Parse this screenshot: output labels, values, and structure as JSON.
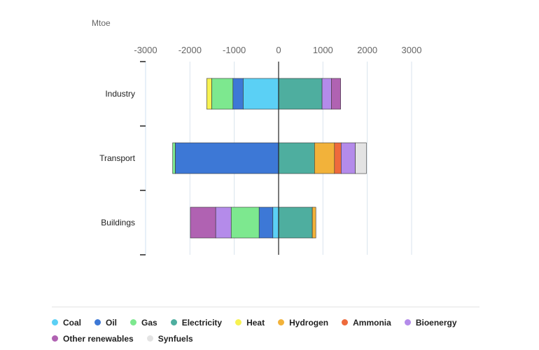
{
  "chart_data": {
    "type": "bar",
    "orientation": "horizontal",
    "stacked": true,
    "unit_label": "Mtoe",
    "xlim": [
      -3000,
      3000
    ],
    "x_ticks": [
      -3000,
      -2000,
      -1000,
      0,
      1000,
      2000,
      3000
    ],
    "x_tick_labels": [
      "-3000",
      "-2000",
      "-1000",
      "0",
      "1000",
      "2000",
      "3000"
    ],
    "categories": [
      "Industry",
      "Transport",
      "Buildings"
    ],
    "series": [
      {
        "name": "Coal",
        "color": "#5bd0f5"
      },
      {
        "name": "Oil",
        "color": "#3d78d6"
      },
      {
        "name": "Gas",
        "color": "#7de88f"
      },
      {
        "name": "Electricity",
        "color": "#4eae9f"
      },
      {
        "name": "Heat",
        "color": "#f7f251"
      },
      {
        "name": "Hydrogen",
        "color": "#f2b23a"
      },
      {
        "name": "Ammonia",
        "color": "#ee6a3c"
      },
      {
        "name": "Bioenergy",
        "color": "#b48bea"
      },
      {
        "name": "Other renewables",
        "color": "#b062b2"
      },
      {
        "name": "Synfuels",
        "color": "#e3e3e3"
      }
    ],
    "bars": [
      {
        "category": "Industry",
        "segments": [
          {
            "series": "Coal",
            "value": -800
          },
          {
            "series": "Oil",
            "value": -230
          },
          {
            "series": "Gas",
            "value": -480
          },
          {
            "series": "Heat",
            "value": -110
          },
          {
            "series": "Electricity",
            "value": 980
          },
          {
            "series": "Bioenergy",
            "value": 210
          },
          {
            "series": "Other renewables",
            "value": 210
          }
        ]
      },
      {
        "category": "Transport",
        "segments": [
          {
            "series": "Oil",
            "value": -2330
          },
          {
            "series": "Gas",
            "value": -60
          },
          {
            "series": "Electricity",
            "value": 810
          },
          {
            "series": "Hydrogen",
            "value": 450
          },
          {
            "series": "Ammonia",
            "value": 150
          },
          {
            "series": "Bioenergy",
            "value": 320
          },
          {
            "series": "Synfuels",
            "value": 250
          }
        ]
      },
      {
        "category": "Buildings",
        "segments": [
          {
            "series": "Coal",
            "value": -130
          },
          {
            "series": "Oil",
            "value": -310
          },
          {
            "series": "Gas",
            "value": -630
          },
          {
            "series": "Bioenergy",
            "value": -350
          },
          {
            "series": "Other renewables",
            "value": -570
          },
          {
            "series": "Electricity",
            "value": 760
          },
          {
            "series": "Hydrogen",
            "value": 80
          }
        ]
      }
    ]
  }
}
